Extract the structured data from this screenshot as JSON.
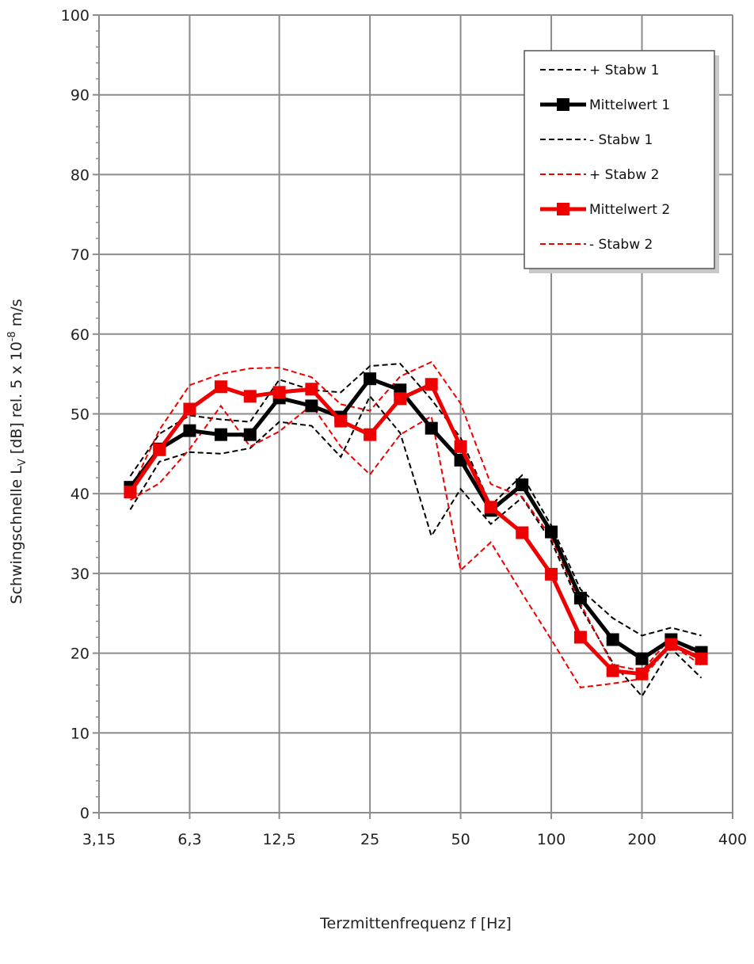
{
  "chart_data": {
    "type": "line",
    "xlabel": "Terzmittenfrequenz f [Hz]",
    "ylabel": {
      "prefix": "Schwingschnelle L",
      "sub": "V",
      "mid": " [dB] rel. 5 x 10",
      "sup": "-8",
      "suffix": " m/s"
    },
    "x_scale": "log",
    "xlim": [
      3.15,
      400
    ],
    "ylim": [
      0,
      100
    ],
    "x_ticks": [
      {
        "value": 3.15,
        "label": "3,15"
      },
      {
        "value": 6.3,
        "label": "6,3"
      },
      {
        "value": 12.5,
        "label": "12,5"
      },
      {
        "value": 25,
        "label": "25"
      },
      {
        "value": 50,
        "label": "50"
      },
      {
        "value": 100,
        "label": "100"
      },
      {
        "value": 200,
        "label": "200"
      },
      {
        "value": 400,
        "label": "400"
      }
    ],
    "y_ticks": [
      0,
      10,
      20,
      30,
      40,
      50,
      60,
      70,
      80,
      90,
      100
    ],
    "grid": true,
    "legend_position": "top-right",
    "x": [
      4,
      5,
      6.3,
      8,
      10,
      12.5,
      16,
      20,
      25,
      31.5,
      40,
      50,
      63,
      80,
      100,
      125,
      160,
      200,
      250,
      315
    ],
    "series": [
      {
        "name": "+ Stabw 1",
        "color": "#000000",
        "style": "dashed",
        "values": [
          42.2,
          47.5,
          49.8,
          49.3,
          49.0,
          54.3,
          53.0,
          52.7,
          56.0,
          56.3,
          51.8,
          47.0,
          38.5,
          42.3,
          36.0,
          28.0,
          24.4,
          22.2,
          23.2,
          22.2
        ]
      },
      {
        "name": "Mittelwert 1",
        "color": "#000000",
        "style": "solid-marker",
        "values": [
          40.8,
          45.6,
          47.9,
          47.4,
          47.4,
          52.0,
          51.0,
          49.6,
          54.4,
          53.0,
          48.2,
          44.2,
          37.9,
          41.1,
          35.2,
          26.9,
          21.7,
          19.3,
          21.7,
          20.1
        ]
      },
      {
        "name": "- Stabw 1",
        "color": "#000000",
        "style": "dashed",
        "values": [
          38.0,
          44.0,
          45.2,
          45.0,
          45.7,
          49.0,
          48.5,
          44.6,
          52.2,
          47.6,
          34.7,
          40.6,
          36.2,
          39.5,
          34.0,
          25.8,
          18.8,
          14.6,
          20.6,
          16.9
        ]
      },
      {
        "name": "+ Stabw 2",
        "color": "#ee0000",
        "style": "dashed",
        "values": [
          40.3,
          48.0,
          53.6,
          55.0,
          55.7,
          55.8,
          54.6,
          51.2,
          50.4,
          54.7,
          56.5,
          51.3,
          41.2,
          39.6,
          34.5,
          26.2,
          18.5,
          17.8,
          22.0,
          19.6
        ]
      },
      {
        "name": "Mittelwert 2",
        "color": "#ee0000",
        "style": "solid-marker",
        "values": [
          40.2,
          45.5,
          50.6,
          53.4,
          52.2,
          52.7,
          53.1,
          49.1,
          47.4,
          51.9,
          53.7,
          45.9,
          38.3,
          35.1,
          29.9,
          22.0,
          17.8,
          17.4,
          21.1,
          19.3
        ]
      },
      {
        "name": "- Stabw 2",
        "color": "#ee0000",
        "style": "dashed",
        "values": [
          39.2,
          41.3,
          45.6,
          51.0,
          45.9,
          47.8,
          51.1,
          45.9,
          42.4,
          47.4,
          49.7,
          30.4,
          33.9,
          27.5,
          21.7,
          15.7,
          16.2,
          16.8,
          21.1,
          18.5
        ]
      }
    ]
  }
}
